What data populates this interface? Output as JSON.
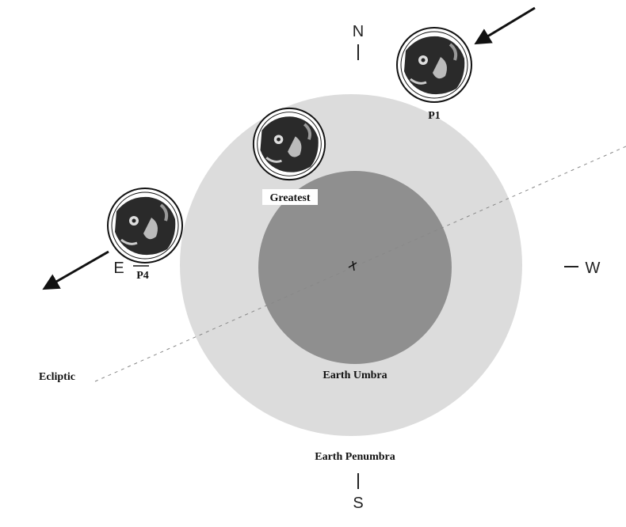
{
  "compass": {
    "north": "N",
    "south": "S",
    "east": "E",
    "west": "W"
  },
  "labels": {
    "p1": "P1",
    "p4": "P4",
    "greatest": "Greatest",
    "umbra": "Earth Umbra",
    "penumbra": "Earth Penumbra",
    "ecliptic": "Ecliptic"
  }
}
